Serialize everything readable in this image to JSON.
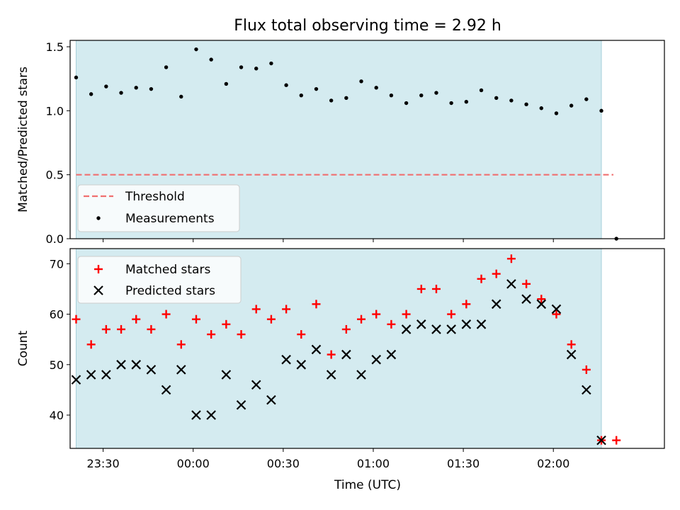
{
  "chart_data": [
    {
      "type": "scatter",
      "title": "Flux total observing time = 2.92 h",
      "ylabel": "Matched/Predicted stars",
      "ylim": [
        0,
        1.55
      ],
      "yticks": [
        "0.0",
        "0.5",
        "1.0",
        "1.5"
      ],
      "yticks_values": [
        0,
        0.5,
        1.0,
        1.5
      ],
      "x_unit": "minutes relative to 00:00 UTC",
      "xlim": [
        -41,
        157
      ],
      "shaded_span": [
        -39,
        136
      ],
      "shade_color": "#d4ebf0",
      "legend_position": "lower-left",
      "threshold": {
        "name": "Threshold",
        "value": 0.5,
        "x": [
          -39,
          140
        ],
        "color": "#f07070",
        "style": "dashed"
      },
      "series": [
        {
          "name": "Measurements",
          "color": "#000000",
          "marker": "dot",
          "x": [
            -39,
            -34,
            -29,
            -24,
            -19,
            -14,
            -9,
            -4,
            1,
            6,
            11,
            16,
            21,
            26,
            31,
            36,
            41,
            46,
            51,
            56,
            61,
            66,
            71,
            76,
            81,
            86,
            91,
            96,
            101,
            106,
            111,
            116,
            121,
            126,
            131,
            136,
            141
          ],
          "y": [
            1.26,
            1.13,
            1.19,
            1.14,
            1.18,
            1.17,
            1.34,
            1.11,
            1.48,
            1.4,
            1.21,
            1.34,
            1.33,
            1.37,
            1.2,
            1.12,
            1.17,
            1.08,
            1.1,
            1.23,
            1.18,
            1.12,
            1.06,
            1.12,
            1.14,
            1.06,
            1.07,
            1.16,
            1.1,
            1.08,
            1.05,
            1.02,
            0.98,
            1.04,
            1.09,
            1.0,
            0.0
          ]
        }
      ]
    },
    {
      "type": "scatter",
      "xlabel": "Time (UTC)",
      "ylabel": "Count",
      "ylim": [
        33.4,
        73
      ],
      "yticks": [
        "40",
        "50",
        "60",
        "70"
      ],
      "yticks_values": [
        40,
        50,
        60,
        70
      ],
      "x_unit": "minutes relative to 00:00 UTC",
      "xlim": [
        -41,
        157
      ],
      "xticks": [
        "23:30",
        "00:00",
        "00:30",
        "01:00",
        "01:30",
        "02:00"
      ],
      "xticks_values": [
        -30,
        0,
        30,
        60,
        90,
        120
      ],
      "shaded_span": [
        -39,
        136
      ],
      "shade_color": "#d4ebf0",
      "legend_position": "upper-left",
      "series": [
        {
          "name": "Matched stars",
          "color": "#ff0000",
          "marker": "plus",
          "x": [
            -39,
            -34,
            -29,
            -24,
            -19,
            -14,
            -9,
            -4,
            1,
            6,
            11,
            16,
            21,
            26,
            31,
            36,
            41,
            46,
            51,
            56,
            61,
            66,
            71,
            76,
            81,
            86,
            91,
            96,
            101,
            106,
            111,
            116,
            121,
            126,
            131,
            136,
            141
          ],
          "y": [
            59,
            54,
            57,
            57,
            59,
            57,
            60,
            54,
            59,
            56,
            58,
            56,
            61,
            59,
            61,
            56,
            62,
            52,
            57,
            59,
            60,
            58,
            60,
            65,
            65,
            60,
            62,
            67,
            68,
            71,
            66,
            63,
            60,
            54,
            49,
            35,
            35
          ]
        },
        {
          "name": "Predicted stars",
          "color": "#000000",
          "marker": "x",
          "x": [
            -39,
            -34,
            -29,
            -24,
            -19,
            -14,
            -9,
            -4,
            1,
            6,
            11,
            16,
            21,
            26,
            31,
            36,
            41,
            46,
            51,
            56,
            61,
            66,
            71,
            76,
            81,
            86,
            91,
            96,
            101,
            106,
            111,
            116,
            121,
            126,
            131,
            136
          ],
          "y": [
            47,
            48,
            48,
            50,
            50,
            49,
            45,
            49,
            40,
            40,
            48,
            42,
            46,
            43,
            51,
            50,
            53,
            48,
            52,
            48,
            51,
            52,
            57,
            58,
            57,
            57,
            58,
            58,
            62,
            66,
            63,
            62,
            61,
            52,
            45,
            35
          ]
        }
      ]
    }
  ]
}
